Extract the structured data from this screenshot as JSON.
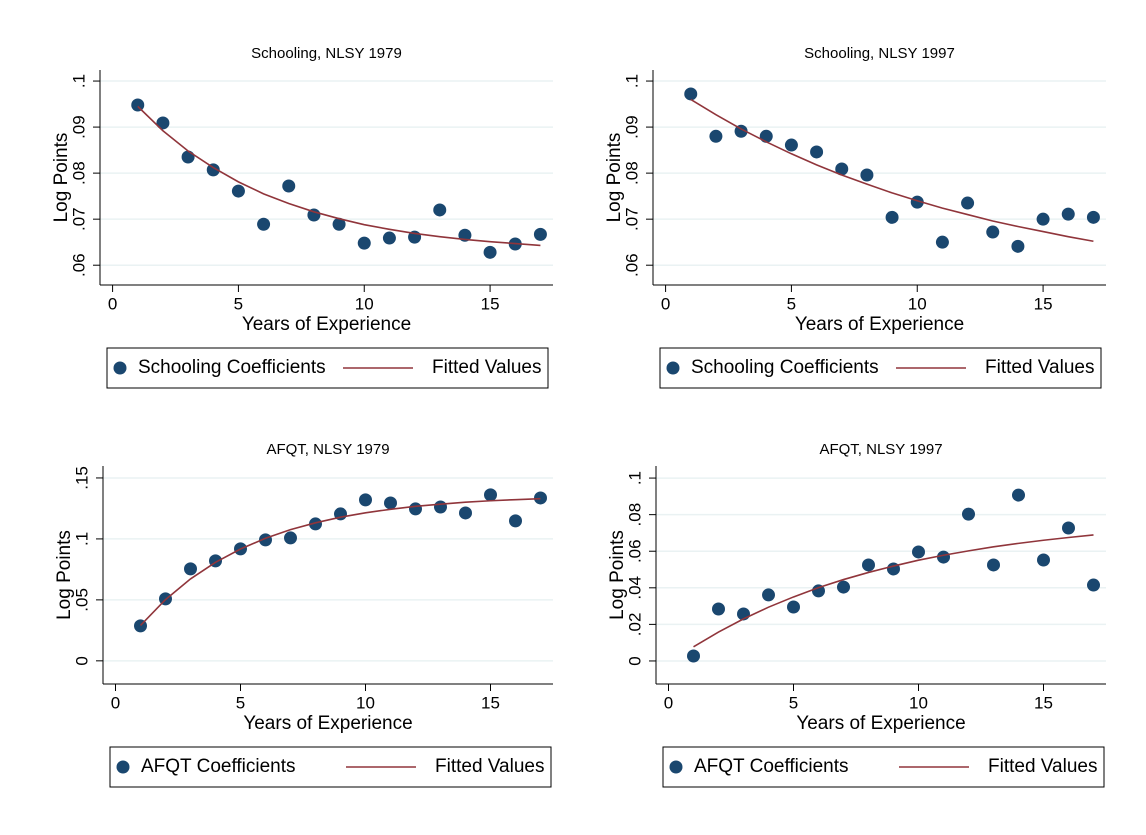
{
  "chart_data": [
    {
      "type": "scatter",
      "title": "Schooling, NLSY 1979",
      "x_label": "Years of Experience",
      "y_label": "Log Points",
      "x": [
        1,
        2,
        3,
        4,
        5,
        6,
        7,
        8,
        9,
        10,
        11,
        12,
        13,
        14,
        15,
        16,
        17
      ],
      "series": [
        {
          "name": "Schooling Coefficients",
          "type": "scatter",
          "color": "#1a476f",
          "values": [
            0.0948,
            0.0909,
            0.0835,
            0.0807,
            0.0761,
            0.0689,
            0.0772,
            0.0709,
            0.0689,
            0.0648,
            0.0659,
            0.0661,
            0.072,
            0.0665,
            0.0628,
            0.0646,
            0.0667
          ]
        },
        {
          "name": "Fitted Values",
          "type": "line",
          "color": "#90353b",
          "values": [
            0.0945,
            0.0892,
            0.0848,
            0.0812,
            0.0781,
            0.0755,
            0.0734,
            0.0716,
            0.0701,
            0.0688,
            0.0678,
            0.0669,
            0.0662,
            0.0656,
            0.0651,
            0.0647,
            0.0643
          ]
        }
      ],
      "xlim": [
        -0.5,
        17.5
      ],
      "xticks": [
        0,
        5,
        10,
        15
      ],
      "ylim": [
        0.0557,
        0.1024
      ],
      "yticks": [
        {
          "value": 0.06,
          "label": ".06"
        },
        {
          "value": 0.07,
          "label": ".07"
        },
        {
          "value": 0.08,
          "label": ".08"
        },
        {
          "value": 0.09,
          "label": ".09"
        },
        {
          "value": 0.1,
          "label": ".1"
        }
      ],
      "grid": true,
      "legend": "bottom"
    },
    {
      "type": "scatter",
      "title": "Schooling, NLSY 1997",
      "x_label": "Years of Experience",
      "y_label": "Log Points",
      "x": [
        1,
        2,
        3,
        4,
        5,
        6,
        7,
        8,
        9,
        10,
        11,
        12,
        13,
        14,
        15,
        16,
        17
      ],
      "series": [
        {
          "name": "Schooling Coefficients",
          "type": "scatter",
          "color": "#1a476f",
          "values": [
            0.0972,
            0.088,
            0.0891,
            0.088,
            0.0861,
            0.0846,
            0.0809,
            0.0796,
            0.0704,
            0.0737,
            0.065,
            0.0735,
            0.0672,
            0.0641,
            0.07,
            0.0711,
            0.0704
          ]
        },
        {
          "name": "Fitted Values",
          "type": "line",
          "color": "#90353b",
          "values": [
            0.096,
            0.0927,
            0.0896,
            0.0868,
            0.0842,
            0.0818,
            0.0796,
            0.0776,
            0.0757,
            0.074,
            0.0724,
            0.071,
            0.0696,
            0.0684,
            0.0673,
            0.0662,
            0.0652
          ]
        }
      ],
      "xlim": [
        -0.5,
        17.5
      ],
      "xticks": [
        0,
        5,
        10,
        15
      ],
      "ylim": [
        0.0557,
        0.1024
      ],
      "yticks": [
        {
          "value": 0.06,
          "label": ".06"
        },
        {
          "value": 0.07,
          "label": ".07"
        },
        {
          "value": 0.08,
          "label": ".08"
        },
        {
          "value": 0.09,
          "label": ".09"
        },
        {
          "value": 0.1,
          "label": ".1"
        }
      ],
      "grid": true,
      "legend": "bottom"
    },
    {
      "type": "scatter",
      "title": "AFQT, NLSY 1979",
      "x_label": "Years of Experience",
      "y_label": "Log Points",
      "x": [
        1,
        2,
        3,
        4,
        5,
        6,
        7,
        8,
        9,
        10,
        11,
        12,
        13,
        14,
        15,
        16,
        17
      ],
      "series": [
        {
          "name": "AFQT Coefficients",
          "type": "scatter",
          "color": "#1a476f",
          "values": [
            0.0287,
            0.0508,
            0.0754,
            0.082,
            0.0918,
            0.0992,
            0.1008,
            0.1123,
            0.1205,
            0.132,
            0.1295,
            0.1246,
            0.1262,
            0.1213,
            0.1361,
            0.1148,
            0.1336
          ]
        },
        {
          "name": "Fitted Values",
          "type": "line",
          "color": "#90353b",
          "values": [
            0.029,
            0.0502,
            0.0672,
            0.0808,
            0.0917,
            0.1005,
            0.1076,
            0.1132,
            0.1178,
            0.1214,
            0.1243,
            0.1267,
            0.1285,
            0.1301,
            0.1313,
            0.1322,
            0.133
          ]
        }
      ],
      "xlim": [
        -0.5,
        17.5
      ],
      "xticks": [
        0,
        5,
        10,
        15
      ],
      "ylim": [
        -0.019,
        0.1598
      ],
      "yticks": [
        0,
        {
          "value": 0.05,
          "label": ".05"
        },
        {
          "value": 0.1,
          "label": ".1"
        },
        {
          "value": 0.15,
          "label": ".15"
        }
      ],
      "grid": true,
      "legend": "bottom"
    },
    {
      "type": "scatter",
      "title": "AFQT, NLSY 1997",
      "x_label": "Years of Experience",
      "y_label": "Log Points",
      "x": [
        1,
        2,
        3,
        4,
        5,
        6,
        7,
        8,
        9,
        10,
        11,
        12,
        13,
        14,
        15,
        16,
        17
      ],
      "series": [
        {
          "name": "AFQT Coefficients",
          "type": "scatter",
          "color": "#1a476f",
          "values": [
            0.0027,
            0.0284,
            0.0257,
            0.0361,
            0.0295,
            0.0383,
            0.0404,
            0.0525,
            0.0503,
            0.0596,
            0.0568,
            0.0803,
            0.0525,
            0.0907,
            0.0552,
            0.0727,
            0.0415
          ]
        },
        {
          "name": "Fitted Values",
          "type": "line",
          "color": "#90353b",
          "values": [
            0.0077,
            0.0158,
            0.023,
            0.0294,
            0.035,
            0.0401,
            0.0445,
            0.0484,
            0.0519,
            0.0551,
            0.0578,
            0.0602,
            0.0624,
            0.0643,
            0.066,
            0.0675,
            0.0689
          ]
        }
      ],
      "xlim": [
        -0.5,
        17.5
      ],
      "xticks": [
        0,
        5,
        10,
        15
      ],
      "ylim": [
        -0.0126,
        0.1066
      ],
      "yticks": [
        0,
        {
          "value": 0.02,
          "label": ".02"
        },
        {
          "value": 0.04,
          "label": ".04"
        },
        {
          "value": 0.06,
          "label": ".06"
        },
        {
          "value": 0.08,
          "label": ".08"
        },
        {
          "value": 0.1,
          "label": ".1"
        }
      ],
      "grid": true,
      "legend": "bottom"
    }
  ]
}
